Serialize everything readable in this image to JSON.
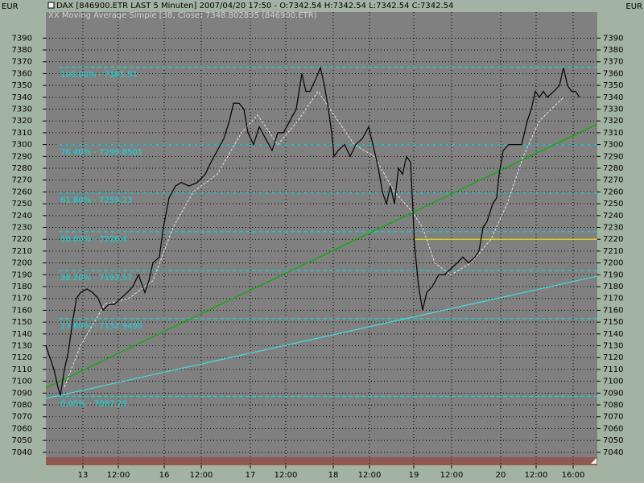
{
  "header": {
    "currency_left": "EUR",
    "currency_right": "EUR",
    "title": "DAX [846900.ETR LAST 5 Minuten] 2007/04/20 17:50 - O:7342.54 H:7342.54 L:7342.54 C:7342.54",
    "indicator": "XX Moving Average Simple [38, Close] 7348.802895 (846900.ETR)"
  },
  "chart_data": {
    "type": "line",
    "xlim": [
      0,
      685
    ],
    "ylim": [
      7029,
      7412
    ],
    "yticks": [
      7040,
      7050,
      7060,
      7070,
      7080,
      7090,
      7100,
      7110,
      7120,
      7130,
      7140,
      7150,
      7160,
      7170,
      7180,
      7190,
      7200,
      7210,
      7220,
      7230,
      7240,
      7250,
      7260,
      7270,
      7280,
      7290,
      7300,
      7310,
      7320,
      7330,
      7340,
      7350,
      7360,
      7370,
      7380,
      7390
    ],
    "xticks": [
      {
        "value": 46,
        "label": "13"
      },
      {
        "value": 90,
        "label": "12:00"
      },
      {
        "value": 147,
        "label": "16"
      },
      {
        "value": 193,
        "label": "12:00"
      },
      {
        "value": 254,
        "label": "17"
      },
      {
        "value": 298,
        "label": "12:00"
      },
      {
        "value": 357,
        "label": "18"
      },
      {
        "value": 402,
        "label": "12:00"
      },
      {
        "value": 457,
        "label": "19"
      },
      {
        "value": 504,
        "label": "12:00"
      },
      {
        "value": 565,
        "label": "20"
      },
      {
        "value": 609,
        "label": "12:00"
      },
      {
        "value": 655,
        "label": "16:00"
      }
    ],
    "grid": true,
    "series": [
      {
        "color": "#000000",
        "dashed": false,
        "x": [
          0,
          5,
          10,
          15,
          18,
          23,
          28,
          33,
          38,
          43,
          51,
          58,
          65,
          71,
          78,
          85,
          93,
          101,
          108,
          115,
          123,
          128,
          133,
          141,
          146,
          153,
          161,
          168,
          178,
          188,
          198,
          205,
          213,
          221,
          228,
          233,
          240,
          246,
          251,
          258,
          265,
          273,
          281,
          288,
          295,
          303,
          311,
          318,
          323,
          328,
          335,
          341,
          346,
          351,
          355,
          358,
          363,
          371,
          378,
          385,
          393,
          401,
          408,
          413,
          418,
          423,
          428,
          433,
          438,
          443,
          448,
          453,
          458,
          463,
          468,
          473,
          480,
          488,
          495,
          503,
          511,
          518,
          525,
          533,
          538,
          543,
          548,
          555,
          560,
          563,
          568,
          575,
          583,
          591,
          598,
          603,
          608,
          613,
          618,
          623,
          631,
          638,
          643,
          648,
          653,
          658,
          663
        ],
        "values": [
          7130,
          7120,
          7110,
          7095,
          7088,
          7110,
          7125,
          7150,
          7170,
          7175,
          7178,
          7175,
          7170,
          7160,
          7165,
          7165,
          7170,
          7175,
          7180,
          7190,
          7175,
          7185,
          7200,
          7205,
          7230,
          7255,
          7265,
          7268,
          7265,
          7268,
          7275,
          7285,
          7295,
          7305,
          7320,
          7335,
          7335,
          7330,
          7310,
          7300,
          7315,
          7305,
          7295,
          7310,
          7310,
          7320,
          7330,
          7360,
          7345,
          7345,
          7355,
          7365,
          7350,
          7330,
          7310,
          7290,
          7295,
          7300,
          7290,
          7300,
          7305,
          7315,
          7295,
          7280,
          7260,
          7250,
          7265,
          7250,
          7280,
          7275,
          7290,
          7285,
          7215,
          7180,
          7160,
          7175,
          7180,
          7190,
          7190,
          7195,
          7200,
          7205,
          7200,
          7205,
          7210,
          7230,
          7235,
          7250,
          7255,
          7275,
          7295,
          7300,
          7300,
          7300,
          7320,
          7330,
          7345,
          7340,
          7345,
          7340,
          7345,
          7350,
          7365,
          7350,
          7345,
          7345,
          7340
        ]
      },
      {
        "color": "#ffffff",
        "dashed": true,
        "x": [
          23,
          43,
          73,
          103,
          133,
          158,
          183,
          213,
          243,
          263,
          288,
          313,
          338,
          358,
          383,
          408,
          433,
          453,
          468,
          483,
          503,
          528,
          553,
          573,
          593,
          613,
          643
        ],
        "values": [
          7095,
          7130,
          7165,
          7170,
          7185,
          7230,
          7260,
          7275,
          7310,
          7325,
          7300,
          7320,
          7345,
          7325,
          7300,
          7290,
          7260,
          7245,
          7230,
          7200,
          7190,
          7200,
          7220,
          7250,
          7290,
          7320,
          7340
        ]
      }
    ],
    "fib_color": "#00e0e0",
    "fib_x": [
      16,
      685
    ],
    "fib_levels": [
      {
        "label": "100.00% - 7365.51",
        "value": 7365.51
      },
      {
        "label": "76.40% - 7299.8501",
        "value": 7299.8501
      },
      {
        "label": "61.80% - 7259.23",
        "value": 7259.23
      },
      {
        "label": "50.00% - 7226.4",
        "value": 7226.4
      },
      {
        "label": "38.20% - 7193.57",
        "value": 7193.57
      },
      {
        "label": "23.60% - 7152.9499",
        "value": 7152.9499
      },
      {
        "label": "0.00% - 7087.29",
        "value": 7087.29
      }
    ],
    "trendlines": [
      {
        "color": "#00b000",
        "x": [
          0,
          685
        ],
        "values": [
          7094.3,
          7317.3
        ]
      },
      {
        "color": "#40e0e0",
        "x": [
          0,
          685
        ],
        "values": [
          7085.5,
          7188.8
        ]
      },
      {
        "color": "#e0e000",
        "x": [
          457,
          685
        ],
        "values": [
          7220,
          7220
        ]
      }
    ]
  }
}
